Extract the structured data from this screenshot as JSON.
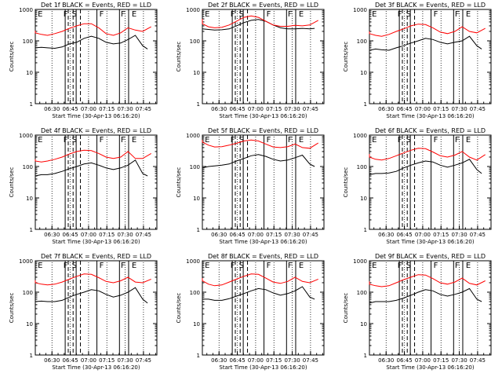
{
  "figure": {
    "background": "#ffffff",
    "colors": {
      "events": "#000000",
      "lld": "#ff0000"
    }
  },
  "chart_data": [
    {
      "type": "line",
      "title": "Det 1f BLACK = Events, RED = LLD",
      "xlabel": "Start Time (30-Apr-13 06:16:20)",
      "ylabel": "Counts/sec",
      "x_ticks": [
        "06:30",
        "06:45",
        "07:00",
        "07:15",
        "07:30",
        "07:45"
      ],
      "y_ticks": [
        "1",
        "10",
        "100",
        "1000"
      ],
      "y_scale": "log",
      "ylim": [
        1,
        1000
      ],
      "xlim": [
        "06:16:20",
        "07:56:00"
      ],
      "markers": [
        "E",
        "F",
        "S",
        "F",
        "F",
        "E"
      ],
      "series": [
        {
          "color": "#000000",
          "x_min": [
            0,
            5,
            10,
            16,
            22,
            28,
            34,
            40,
            46,
            52,
            58,
            64,
            70,
            76,
            82,
            88,
            92
          ],
          "values": [
            60,
            62,
            60,
            58,
            64,
            80,
            90,
            120,
            140,
            120,
            90,
            80,
            85,
            110,
            150,
            70,
            55
          ]
        },
        {
          "color": "#ff0000",
          "x_min": [
            -5,
            0,
            5,
            10,
            16,
            22,
            28,
            34,
            40,
            46,
            52,
            58,
            64,
            70,
            76,
            82,
            88,
            95
          ],
          "values": [
            210,
            180,
            160,
            150,
            170,
            200,
            250,
            300,
            350,
            350,
            260,
            170,
            150,
            180,
            260,
            220,
            200,
            280
          ]
        }
      ]
    },
    {
      "type": "line",
      "title": "Det 2f BLACK = Events, RED = LLD",
      "xlabel": "Start Time (30-Apr-13 06:16:20)",
      "ylabel": "Counts/sec",
      "x_ticks": [
        "06:30",
        "06:45",
        "07:00",
        "07:15",
        "07:30",
        "07:45"
      ],
      "y_ticks": [
        "1",
        "10",
        "100",
        "1000"
      ],
      "y_scale": "log",
      "ylim": [
        1,
        1000
      ],
      "xlim": [
        "06:16:20",
        "07:56:00"
      ],
      "markers": [
        "E",
        "F",
        "S",
        "F",
        "F",
        "E"
      ],
      "series": [
        {
          "color": "#000000",
          "x_min": [
            0,
            5,
            10,
            16,
            22,
            28,
            34,
            40,
            46,
            52,
            58,
            64,
            70,
            76,
            82,
            88,
            92
          ],
          "values": [
            240,
            230,
            220,
            225,
            240,
            300,
            380,
            450,
            480,
            420,
            320,
            260,
            240,
            240,
            250,
            240,
            250
          ]
        },
        {
          "color": "#ff0000",
          "x_min": [
            -5,
            0,
            5,
            10,
            16,
            22,
            28,
            34,
            40,
            46,
            52,
            58,
            64,
            70,
            76,
            82,
            88,
            95
          ],
          "values": [
            500,
            350,
            280,
            260,
            270,
            320,
            420,
            560,
            620,
            560,
            420,
            320,
            290,
            290,
            310,
            300,
            320,
            450
          ]
        }
      ]
    },
    {
      "type": "line",
      "title": "Det 3f BLACK = Events, RED = LLD",
      "xlabel": "Start Time (30-Apr-13 06:16:20)",
      "ylabel": "Counts/sec",
      "x_ticks": [
        "06:30",
        "06:45",
        "07:00",
        "07:15",
        "07:30",
        "07:45"
      ],
      "y_ticks": [
        "1",
        "10",
        "100",
        "1000"
      ],
      "y_scale": "log",
      "ylim": [
        1,
        1000
      ],
      "xlim": [
        "06:16:20",
        "07:56:00"
      ],
      "markers": [
        "E",
        "F",
        "S",
        "F",
        "F",
        "E"
      ],
      "series": [
        {
          "color": "#000000",
          "x_min": [
            0,
            5,
            10,
            16,
            22,
            28,
            34,
            40,
            46,
            52,
            58,
            64,
            70,
            76,
            82,
            88,
            92
          ],
          "values": [
            50,
            55,
            52,
            50,
            60,
            70,
            85,
            100,
            120,
            110,
            90,
            80,
            90,
            100,
            140,
            70,
            55
          ]
        },
        {
          "color": "#ff0000",
          "x_min": [
            -5,
            0,
            5,
            10,
            16,
            22,
            28,
            34,
            40,
            46,
            52,
            58,
            64,
            70,
            76,
            82,
            88,
            95
          ],
          "values": [
            200,
            170,
            150,
            140,
            160,
            200,
            240,
            300,
            340,
            330,
            260,
            190,
            170,
            200,
            280,
            200,
            180,
            250
          ]
        }
      ]
    },
    {
      "type": "line",
      "title": "Det 4f BLACK = Events, RED = LLD",
      "xlabel": "Start Time (30-Apr-13 06:16:20)",
      "ylabel": "Counts/sec",
      "x_ticks": [
        "06:30",
        "06:45",
        "07:00",
        "07:15",
        "07:30",
        "07:45"
      ],
      "y_ticks": [
        "1",
        "10",
        "100",
        "1000"
      ],
      "y_scale": "log",
      "ylim": [
        1,
        1000
      ],
      "xlim": [
        "06:16:20",
        "07:56:00"
      ],
      "markers": [
        "E",
        "F",
        "S",
        "F",
        "F",
        "E"
      ],
      "series": [
        {
          "color": "#000000",
          "x_min": [
            0,
            5,
            10,
            16,
            22,
            28,
            34,
            40,
            46,
            52,
            58,
            64,
            70,
            76,
            82,
            88,
            92
          ],
          "values": [
            50,
            55,
            55,
            60,
            70,
            85,
            100,
            120,
            130,
            110,
            90,
            80,
            90,
            110,
            160,
            60,
            50
          ]
        },
        {
          "color": "#ff0000",
          "x_min": [
            -5,
            0,
            5,
            10,
            16,
            22,
            28,
            34,
            40,
            46,
            52,
            58,
            64,
            70,
            76,
            82,
            88,
            95
          ],
          "values": [
            170,
            150,
            140,
            150,
            170,
            200,
            250,
            300,
            330,
            320,
            260,
            200,
            180,
            200,
            300,
            180,
            180,
            260
          ]
        }
      ]
    },
    {
      "type": "line",
      "title": "Det 5f BLACK = Events, RED = LLD",
      "xlabel": "Start Time (30-Apr-13 06:16:20)",
      "ylabel": "Counts/sec",
      "x_ticks": [
        "06:30",
        "06:45",
        "07:00",
        "07:15",
        "07:30",
        "07:45"
      ],
      "y_ticks": [
        "1",
        "10",
        "100",
        "1000"
      ],
      "y_scale": "log",
      "ylim": [
        1,
        1000
      ],
      "xlim": [
        "06:16:20",
        "07:56:00"
      ],
      "markers": [
        "E",
        "F",
        "S",
        "F",
        "F",
        "E"
      ],
      "series": [
        {
          "color": "#000000",
          "x_min": [
            0,
            5,
            10,
            16,
            22,
            28,
            34,
            40,
            46,
            52,
            58,
            64,
            70,
            76,
            82,
            88,
            92
          ],
          "values": [
            90,
            100,
            105,
            110,
            120,
            150,
            180,
            220,
            240,
            210,
            170,
            150,
            160,
            190,
            230,
            120,
            100
          ]
        },
        {
          "color": "#ff0000",
          "x_min": [
            -5,
            0,
            5,
            10,
            16,
            22,
            28,
            34,
            40,
            46,
            52,
            58,
            64,
            70,
            76,
            82,
            88,
            95
          ],
          "values": [
            700,
            600,
            480,
            420,
            430,
            480,
            550,
            650,
            700,
            650,
            520,
            420,
            400,
            430,
            520,
            400,
            380,
            560
          ]
        }
      ]
    },
    {
      "type": "line",
      "title": "Det 6f BLACK = Events, RED = LLD",
      "xlabel": "Start Time (30-Apr-13 06:16:20)",
      "ylabel": "Counts/sec",
      "x_ticks": [
        "06:30",
        "06:45",
        "07:00",
        "07:15",
        "07:30",
        "07:45"
      ],
      "y_ticks": [
        "1",
        "10",
        "100",
        "1000"
      ],
      "y_scale": "log",
      "ylim": [
        1,
        1000
      ],
      "xlim": [
        "06:16:20",
        "07:56:00"
      ],
      "markers": [
        "E",
        "F",
        "S",
        "F",
        "F",
        "E"
      ],
      "series": [
        {
          "color": "#000000",
          "x_min": [
            0,
            5,
            10,
            16,
            22,
            28,
            34,
            40,
            46,
            52,
            58,
            64,
            70,
            76,
            82,
            88,
            92
          ],
          "values": [
            55,
            60,
            60,
            62,
            70,
            90,
            110,
            130,
            150,
            140,
            110,
            95,
            110,
            130,
            170,
            80,
            60
          ]
        },
        {
          "color": "#ff0000",
          "x_min": [
            -5,
            0,
            5,
            10,
            16,
            22,
            28,
            34,
            40,
            46,
            52,
            58,
            64,
            70,
            76,
            82,
            88,
            95
          ],
          "values": [
            250,
            200,
            170,
            160,
            180,
            220,
            270,
            330,
            380,
            370,
            290,
            220,
            200,
            230,
            300,
            200,
            160,
            240
          ]
        }
      ]
    },
    {
      "type": "line",
      "title": "Det 7f BLACK = Events, RED = LLD",
      "xlabel": "Start Time (30-Apr-13 06:16:20)",
      "ylabel": "Counts/sec",
      "x_ticks": [
        "06:30",
        "06:45",
        "07:00",
        "07:15",
        "07:30",
        "07:45"
      ],
      "y_ticks": [
        "1",
        "10",
        "100",
        "1000"
      ],
      "y_scale": "log",
      "ylim": [
        1,
        1000
      ],
      "xlim": [
        "06:16:20",
        "07:56:00"
      ],
      "markers": [
        "E",
        "F",
        "S",
        "F",
        "F",
        "E"
      ],
      "series": [
        {
          "color": "#000000",
          "x_min": [
            0,
            5,
            10,
            16,
            22,
            28,
            34,
            40,
            46,
            52,
            58,
            64,
            70,
            76,
            82,
            88,
            92
          ],
          "values": [
            50,
            52,
            50,
            50,
            55,
            70,
            85,
            100,
            120,
            110,
            85,
            70,
            80,
            100,
            140,
            60,
            45
          ]
        },
        {
          "color": "#ff0000",
          "x_min": [
            -5,
            0,
            5,
            10,
            16,
            22,
            28,
            34,
            40,
            46,
            52,
            58,
            64,
            70,
            76,
            82,
            88,
            95
          ],
          "values": [
            240,
            200,
            180,
            170,
            180,
            210,
            260,
            320,
            380,
            370,
            290,
            220,
            200,
            230,
            300,
            210,
            200,
            260
          ]
        }
      ]
    },
    {
      "type": "line",
      "title": "Det 8f BLACK = Events, RED = LLD",
      "xlabel": "Start Time (30-Apr-13 06:16:20)",
      "ylabel": "Counts/sec",
      "x_ticks": [
        "06:30",
        "06:45",
        "07:00",
        "07:15",
        "07:30",
        "07:45"
      ],
      "y_ticks": [
        "1",
        "10",
        "100",
        "1000"
      ],
      "y_scale": "log",
      "ylim": [
        1,
        1000
      ],
      "xlim": [
        "06:16:20",
        "07:56:00"
      ],
      "markers": [
        "E",
        "F",
        "S",
        "F",
        "F",
        "E"
      ],
      "series": [
        {
          "color": "#000000",
          "x_min": [
            0,
            5,
            10,
            16,
            22,
            28,
            34,
            40,
            46,
            52,
            58,
            64,
            70,
            76,
            82,
            88,
            92
          ],
          "values": [
            60,
            60,
            55,
            55,
            62,
            75,
            90,
            110,
            130,
            120,
            95,
            80,
            90,
            110,
            150,
            70,
            60
          ]
        },
        {
          "color": "#ff0000",
          "x_min": [
            -5,
            0,
            5,
            10,
            16,
            22,
            28,
            34,
            40,
            46,
            52,
            58,
            64,
            70,
            76,
            82,
            88,
            95
          ],
          "values": [
            280,
            230,
            180,
            160,
            170,
            210,
            260,
            320,
            380,
            370,
            280,
            210,
            190,
            220,
            300,
            220,
            200,
            260
          ]
        }
      ]
    },
    {
      "type": "line",
      "title": "Det 9f BLACK = Events, RED = LLD",
      "xlabel": "Start Time (30-Apr-13 06:16:20)",
      "ylabel": "Counts/sec",
      "x_ticks": [
        "06:30",
        "06:45",
        "07:00",
        "07:15",
        "07:30",
        "07:45"
      ],
      "y_ticks": [
        "1",
        "10",
        "100",
        "1000"
      ],
      "y_scale": "log",
      "ylim": [
        1,
        1000
      ],
      "xlim": [
        "06:16:20",
        "07:56:00"
      ],
      "markers": [
        "E",
        "F",
        "S",
        "F",
        "F",
        "E"
      ],
      "series": [
        {
          "color": "#000000",
          "x_min": [
            0,
            5,
            10,
            16,
            22,
            28,
            34,
            40,
            46,
            52,
            58,
            64,
            70,
            76,
            82,
            88,
            92
          ],
          "values": [
            45,
            50,
            50,
            50,
            55,
            65,
            80,
            100,
            120,
            110,
            85,
            75,
            85,
            100,
            130,
            60,
            50
          ]
        },
        {
          "color": "#ff0000",
          "x_min": [
            -5,
            0,
            5,
            10,
            16,
            22,
            28,
            34,
            40,
            46,
            52,
            58,
            64,
            70,
            76,
            82,
            88,
            95
          ],
          "values": [
            220,
            180,
            160,
            150,
            160,
            200,
            250,
            300,
            360,
            350,
            270,
            200,
            180,
            210,
            280,
            190,
            170,
            230
          ]
        }
      ]
    }
  ]
}
